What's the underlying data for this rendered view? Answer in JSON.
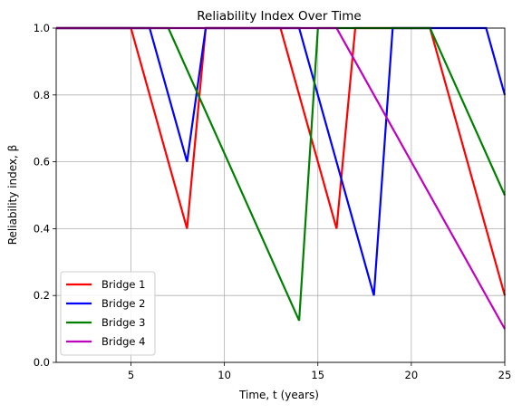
{
  "chart_data": {
    "type": "line",
    "title": "Reliability Index Over Time",
    "xlabel": "Time, t (years)",
    "ylabel": "Reliability index, β",
    "xlim": [
      1,
      25
    ],
    "ylim": [
      0.0,
      1.0
    ],
    "xticks": [
      5,
      10,
      15,
      20,
      25
    ],
    "yticks": [
      0.0,
      0.2,
      0.4,
      0.6,
      0.8,
      1.0
    ],
    "xtick_labels": [
      "5",
      "10",
      "15",
      "20",
      "25"
    ],
    "ytick_labels": [
      "0.0",
      "0.2",
      "0.4",
      "0.6",
      "0.8",
      "1.0"
    ],
    "grid": true,
    "legend_position": "lower-left",
    "series": [
      {
        "name": "Bridge 1",
        "color": "#ff0000",
        "points": [
          [
            1,
            1.0
          ],
          [
            5,
            1.0
          ],
          [
            8,
            0.4
          ],
          [
            9,
            1.0
          ],
          [
            13,
            1.0
          ],
          [
            16,
            0.4
          ],
          [
            17,
            1.0
          ],
          [
            21,
            1.0
          ],
          [
            25,
            0.2
          ]
        ]
      },
      {
        "name": "Bridge 2",
        "color": "#0000ff",
        "points": [
          [
            1,
            1.0
          ],
          [
            6,
            1.0
          ],
          [
            8,
            0.6
          ],
          [
            9,
            1.0
          ],
          [
            14,
            1.0
          ],
          [
            18,
            0.2
          ],
          [
            19,
            1.0
          ],
          [
            24,
            1.0
          ],
          [
            25,
            0.8
          ]
        ]
      },
      {
        "name": "Bridge 3",
        "color": "#008000",
        "points": [
          [
            1,
            1.0
          ],
          [
            7,
            1.0
          ],
          [
            14,
            0.125
          ],
          [
            15,
            1.0
          ],
          [
            21,
            1.0
          ],
          [
            25,
            0.5
          ]
        ]
      },
      {
        "name": "Bridge 4",
        "color": "#bf00bf",
        "points": [
          [
            1,
            1.0
          ],
          [
            16,
            1.0
          ],
          [
            25,
            0.1
          ]
        ]
      }
    ]
  }
}
